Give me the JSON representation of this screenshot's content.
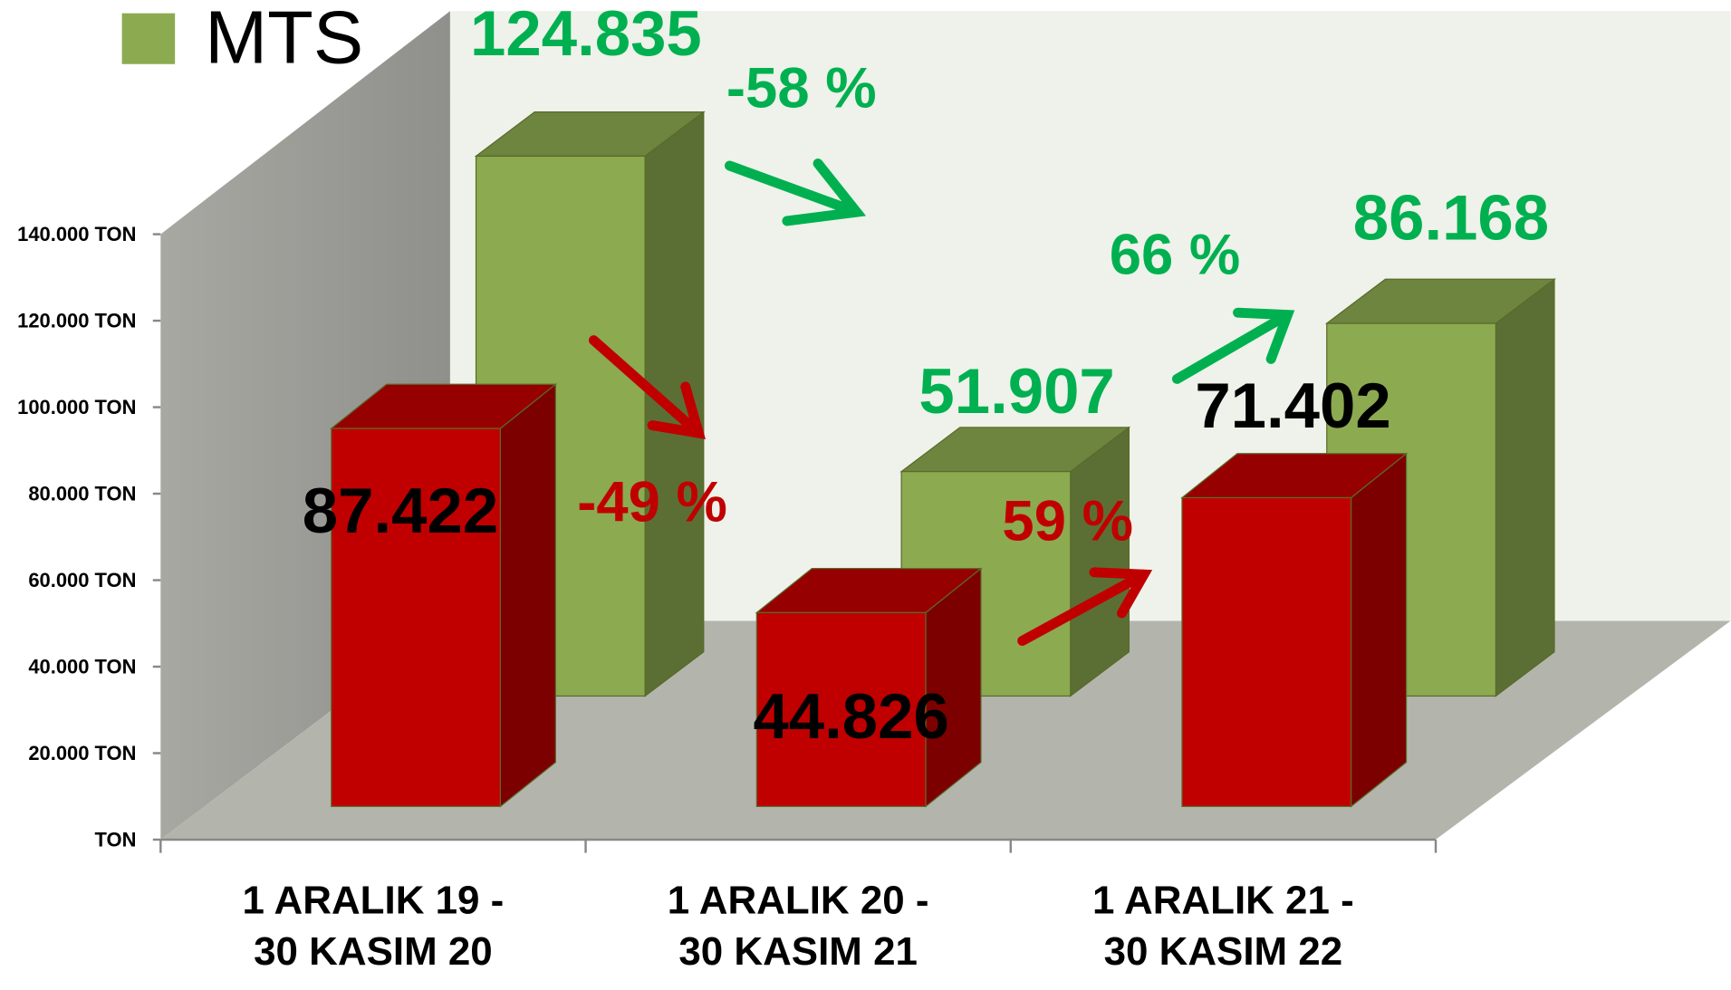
{
  "chart_data": {
    "type": "bar3d",
    "categories": [
      "1 ARALIK 19 -\n30 KASIM 20",
      "1 ARALIK 20 -\n30 KASIM 21",
      "1 ARALIK 21 -\n30 KASIM 22"
    ],
    "series": [
      {
        "color": "#c00000",
        "values": [
          87422,
          44826,
          71402
        ],
        "value_labels": [
          "87.422",
          "44.826",
          "71.402"
        ]
      },
      {
        "name": "MTS",
        "color": "#8caa50",
        "values": [
          124835,
          51907,
          86168
        ],
        "value_labels": [
          "124.835",
          "51.907",
          "86.168"
        ]
      }
    ],
    "ylim": [
      0,
      140000
    ],
    "yticks": [
      {
        "value": 0,
        "label": "TON"
      },
      {
        "value": 20000,
        "label": "20.000 TON"
      },
      {
        "value": 40000,
        "label": "40.000 TON"
      },
      {
        "value": 60000,
        "label": "60.000 TON"
      },
      {
        "value": 80000,
        "label": "80.000 TON"
      },
      {
        "value": 100000,
        "label": "100.000 TON"
      },
      {
        "value": 120000,
        "label": "120.000 TON"
      },
      {
        "value": 140000,
        "label": "140.000 TON"
      }
    ],
    "annotations": [
      {
        "text": "-58 %",
        "color": "#00b050"
      },
      {
        "text": "66 %",
        "color": "#00b050"
      },
      {
        "text": "-49 %",
        "color": "#c00000"
      },
      {
        "text": "59 %",
        "color": "#c00000"
      }
    ]
  }
}
